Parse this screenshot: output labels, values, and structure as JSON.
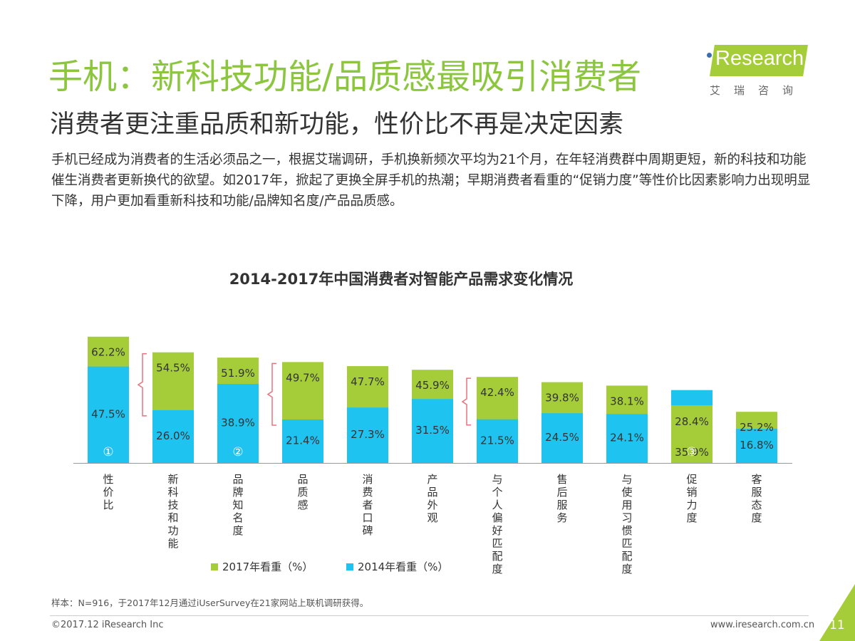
{
  "header": {
    "title": "手机：新科技功能/品质感最吸引消费者",
    "subtitle": "消费者更注重品质和新功能，性价比不再是决定因素",
    "paragraph": "手机已经成为消费者的生活必须品之一，根据艾瑞调研，手机换新频次平均为21个月，在年轻消费群中周期更短，新的科技和功能催生消费者更新换代的欲望。如2017年，掀起了更换全屏手机的热潮；早期消费者看重的“促销力度”等性价比因素影响力出现明显下降，用户更加看重新科技和功能/品牌知名度/产品品质感。"
  },
  "logo": {
    "text": "Research",
    "cn": "艾瑞咨询"
  },
  "chart_data": {
    "type": "bar",
    "title": "2014-2017年中国消费者对智能产品需求变化情况",
    "categories": [
      "性价比",
      "新科技和功能",
      "品牌知名度",
      "品质感",
      "消费者口碑",
      "产品外观",
      "与个人偏好匹配度",
      "售后服务",
      "与使用习惯匹配度",
      "促销力度",
      "客服态度"
    ],
    "series": [
      {
        "name": "2017年看重（%）",
        "values": [
          62.2,
          54.5,
          51.9,
          49.7,
          47.7,
          45.9,
          42.4,
          39.8,
          38.1,
          28.4,
          25.2
        ],
        "color": "#a5cd39"
      },
      {
        "name": "2014年看重（%）",
        "values": [
          47.5,
          26.0,
          38.9,
          21.4,
          27.3,
          31.5,
          21.5,
          24.5,
          24.1,
          35.9,
          16.8
        ],
        "color": "#1ec3f0"
      }
    ],
    "value_labels_2017": [
      "62.2%",
      "54.5%",
      "51.9%",
      "49.7%",
      "47.7%",
      "45.9%",
      "42.4%",
      "39.8%",
      "38.1%",
      "28.4%",
      "25.2%"
    ],
    "value_labels_2014": [
      "47.5%",
      "26.0%",
      "38.9%",
      "21.4%",
      "27.3%",
      "31.5%",
      "21.5%",
      "24.5%",
      "24.1%",
      "35.9%",
      "16.8%"
    ],
    "annotations": [
      "①",
      "②",
      "③"
    ],
    "legend_placement": "bottom",
    "grid": false
  },
  "footer": {
    "note": "样本：N=916，于2017年12月通过iUserSurvey在21家网站上联机调研获得。",
    "copyright": "©2017.12 iResearch Inc",
    "url": "www.iresearch.com.cn",
    "page": "11"
  }
}
